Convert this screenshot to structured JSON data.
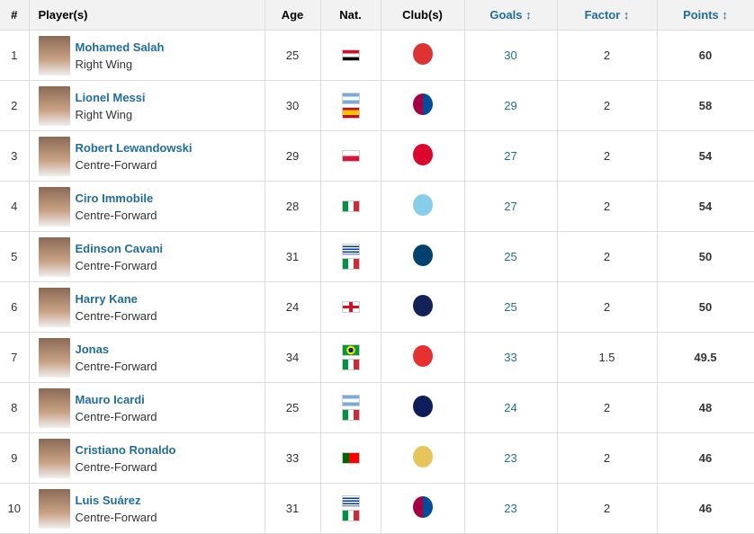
{
  "headers": {
    "rank": "#",
    "player": "Player(s)",
    "age": "Age",
    "nat": "Nat.",
    "club": "Club(s)",
    "goals": "Goals",
    "factor": "Factor",
    "points": "Points",
    "sort_icon": "↕"
  },
  "rows": [
    {
      "rank": "1",
      "name": "Mohamed Salah",
      "pos": "Right Wing",
      "age": "25",
      "nat": [
        "egypt"
      ],
      "club": "liverpool",
      "goals": "30",
      "factor": "2",
      "points": "60"
    },
    {
      "rank": "2",
      "name": "Lionel Messi",
      "pos": "Right Wing",
      "age": "30",
      "nat": [
        "argentina",
        "spain"
      ],
      "club": "barcelona",
      "goals": "29",
      "factor": "2",
      "points": "58"
    },
    {
      "rank": "3",
      "name": "Robert Lewandowski",
      "pos": "Centre-Forward",
      "age": "29",
      "nat": [
        "poland"
      ],
      "club": "bayern",
      "goals": "27",
      "factor": "2",
      "points": "54"
    },
    {
      "rank": "4",
      "name": "Ciro Immobile",
      "pos": "Centre-Forward",
      "age": "28",
      "nat": [
        "italy"
      ],
      "club": "lazio",
      "goals": "27",
      "factor": "2",
      "points": "54"
    },
    {
      "rank": "5",
      "name": "Edinson Cavani",
      "pos": "Centre-Forward",
      "age": "31",
      "nat": [
        "uruguay",
        "italy"
      ],
      "club": "psg",
      "goals": "25",
      "factor": "2",
      "points": "50"
    },
    {
      "rank": "6",
      "name": "Harry Kane",
      "pos": "Centre-Forward",
      "age": "24",
      "nat": [
        "england"
      ],
      "club": "tottenham",
      "goals": "25",
      "factor": "2",
      "points": "50"
    },
    {
      "rank": "7",
      "name": "Jonas",
      "pos": "Centre-Forward",
      "age": "34",
      "nat": [
        "brazil",
        "italy"
      ],
      "club": "benfica",
      "goals": "33",
      "factor": "1.5",
      "points": "49.5"
    },
    {
      "rank": "8",
      "name": "Mauro Icardi",
      "pos": "Centre-Forward",
      "age": "25",
      "nat": [
        "argentina",
        "italy"
      ],
      "club": "inter",
      "goals": "24",
      "factor": "2",
      "points": "48"
    },
    {
      "rank": "9",
      "name": "Cristiano Ronaldo",
      "pos": "Centre-Forward",
      "age": "33",
      "nat": [
        "portugal"
      ],
      "club": "real-madrid",
      "goals": "23",
      "factor": "2",
      "points": "46"
    },
    {
      "rank": "10",
      "name": "Luis Suárez",
      "pos": "Centre-Forward",
      "age": "31",
      "nat": [
        "uruguay",
        "italy"
      ],
      "club": "barcelona",
      "goals": "23",
      "factor": "2",
      "points": "46"
    }
  ],
  "colors": {
    "link": "#1f6d9c",
    "header_bg": "#f2f2f2"
  }
}
